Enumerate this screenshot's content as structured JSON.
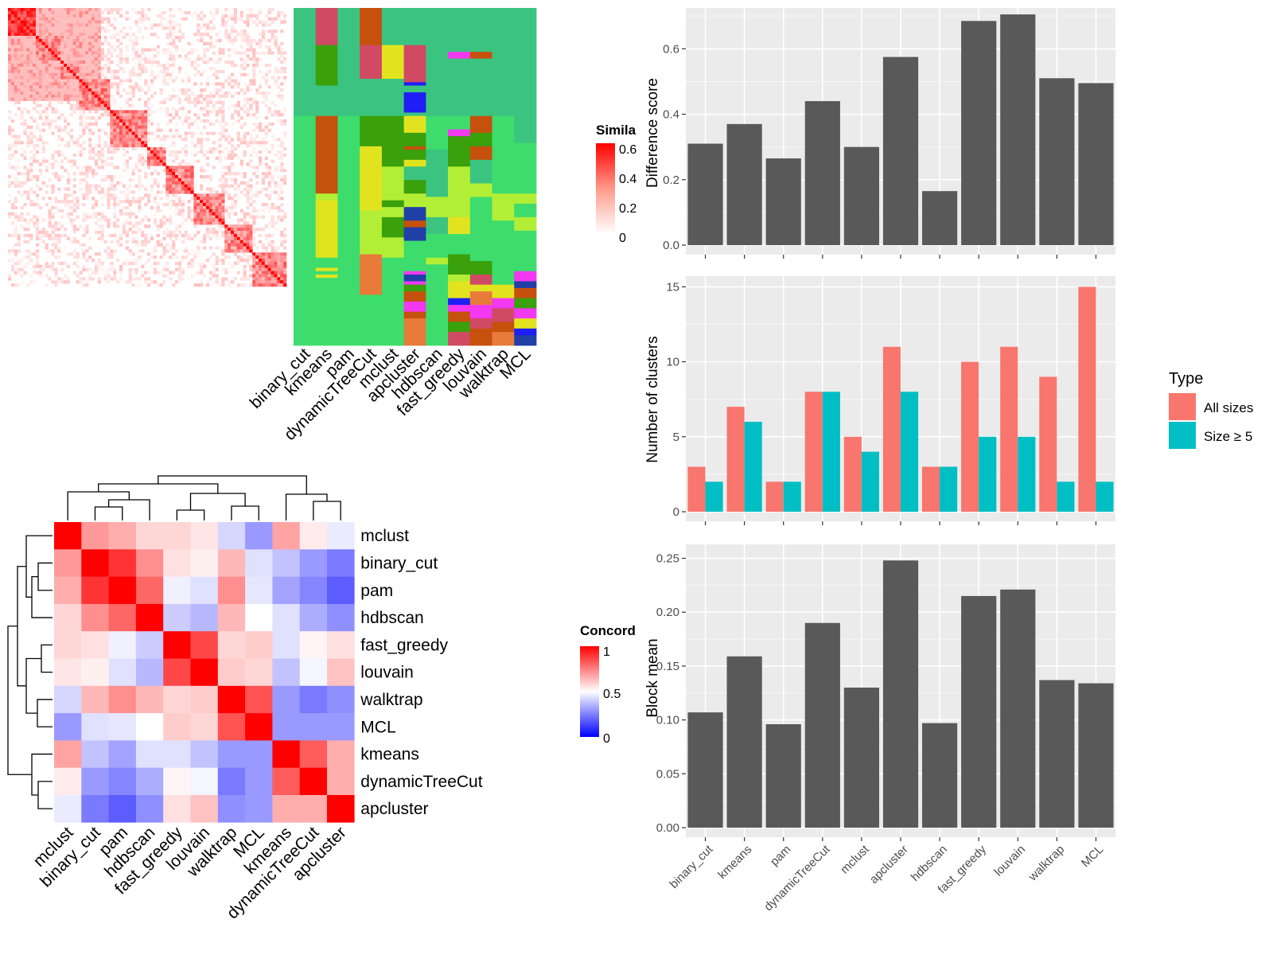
{
  "methods": [
    "binary_cut",
    "kmeans",
    "pam",
    "dynamicTreeCut",
    "mclust",
    "apcluster",
    "hdbscan",
    "fast_greedy",
    "louvain",
    "walktrap",
    "MCL"
  ],
  "colors": {
    "heat_red": "#ff0000",
    "heat_blue": "#0000ff",
    "panel_bg": "#ebebeb",
    "bar_gray": "#595959",
    "all_sizes": "#f8766d",
    "size_ge5": "#00bfc4",
    "class_colors": [
      "#3bc47f",
      "#d04a64",
      "#c5510d",
      "#3aa00c",
      "#e2e31f",
      "#3ddc6d",
      "#b3ee36",
      "#2040a8",
      "#1f1ff5",
      "#f238f0",
      "#e87a3a"
    ]
  },
  "similarity_legend": {
    "title": "Simila",
    "ticks": [
      "0.6",
      "0.4",
      "0.2",
      "0"
    ]
  },
  "concordance_legend": {
    "title": "Concord",
    "ticks": [
      "1",
      "0.5",
      "0"
    ]
  },
  "concordance_heatmap": {
    "row_order": [
      "mclust",
      "binary_cut",
      "pam",
      "hdbscan",
      "fast_greedy",
      "louvain",
      "walktrap",
      "MCL",
      "kmeans",
      "dynamicTreeCut",
      "apcluster"
    ],
    "values": [
      [
        1.0,
        0.7,
        0.66,
        0.58,
        0.58,
        0.55,
        0.42,
        0.3,
        0.68,
        0.54,
        0.46
      ],
      [
        0.7,
        1.0,
        0.9,
        0.72,
        0.56,
        0.53,
        0.64,
        0.44,
        0.38,
        0.3,
        0.24
      ],
      [
        0.66,
        0.9,
        1.0,
        0.8,
        0.47,
        0.44,
        0.72,
        0.45,
        0.32,
        0.26,
        0.18
      ],
      [
        0.58,
        0.72,
        0.8,
        1.0,
        0.4,
        0.36,
        0.64,
        0.5,
        0.44,
        0.34,
        0.28
      ],
      [
        0.58,
        0.56,
        0.47,
        0.4,
        1.0,
        0.86,
        0.58,
        0.6,
        0.44,
        0.52,
        0.56
      ],
      [
        0.55,
        0.53,
        0.44,
        0.36,
        0.86,
        1.0,
        0.6,
        0.58,
        0.38,
        0.48,
        0.62
      ],
      [
        0.42,
        0.64,
        0.72,
        0.64,
        0.58,
        0.6,
        1.0,
        0.84,
        0.3,
        0.24,
        0.28
      ],
      [
        0.3,
        0.44,
        0.45,
        0.5,
        0.6,
        0.58,
        0.84,
        1.0,
        0.3,
        0.3,
        0.3
      ],
      [
        0.68,
        0.38,
        0.32,
        0.44,
        0.44,
        0.38,
        0.3,
        0.3,
        1.0,
        0.82,
        0.66
      ],
      [
        0.54,
        0.3,
        0.26,
        0.34,
        0.52,
        0.48,
        0.24,
        0.3,
        0.82,
        1.0,
        0.66
      ],
      [
        0.46,
        0.24,
        0.18,
        0.28,
        0.56,
        0.62,
        0.28,
        0.3,
        0.66,
        0.66,
        1.0
      ]
    ]
  },
  "chart_data": [
    {
      "type": "heatmap",
      "name": "similarity",
      "blocks": [
        9,
        8,
        6,
        10,
        12,
        6,
        9,
        10,
        9,
        11
      ],
      "value_range": [
        0,
        0.6
      ]
    },
    {
      "type": "heatmap",
      "name": "class-assignments",
      "columns": [
        "binary_cut",
        "kmeans",
        "pam",
        "dynamicTreeCut",
        "mclust",
        "apcluster",
        "hdbscan",
        "fast_greedy",
        "louvain",
        "walktrap",
        "MCL"
      ]
    },
    {
      "type": "bar",
      "categories": [
        "binary_cut",
        "kmeans",
        "pam",
        "dynamicTreeCut",
        "mclust",
        "apcluster",
        "hdbscan",
        "fast_greedy",
        "louvain",
        "walktrap",
        "MCL"
      ],
      "values": [
        0.31,
        0.37,
        0.265,
        0.44,
        0.3,
        0.575,
        0.165,
        0.685,
        0.705,
        0.51,
        0.495
      ],
      "ylabel": "Difference score",
      "ylim": [
        0,
        0.715
      ],
      "yticks": [
        "0.0",
        "0.2",
        "0.4",
        "0.6"
      ]
    },
    {
      "type": "bar",
      "categories": [
        "binary_cut",
        "kmeans",
        "pam",
        "dynamicTreeCut",
        "mclust",
        "apcluster",
        "hdbscan",
        "fast_greedy",
        "louvain",
        "walktrap",
        "MCL"
      ],
      "series": [
        {
          "name": "All sizes",
          "values": [
            3,
            7,
            2,
            8,
            5,
            11,
            3,
            10,
            11,
            9,
            15
          ]
        },
        {
          "name": "Size ≥ 5",
          "values": [
            2,
            6,
            2,
            8,
            4,
            8,
            3,
            5,
            5,
            2,
            2
          ]
        }
      ],
      "ylabel": "Number of clusters",
      "ylim": [
        0,
        15.5
      ],
      "yticks": [
        "0",
        "5",
        "10",
        "15"
      ],
      "legend": {
        "title": "Type",
        "position": "right"
      }
    },
    {
      "type": "bar",
      "categories": [
        "binary_cut",
        "kmeans",
        "pam",
        "dynamicTreeCut",
        "mclust",
        "apcluster",
        "hdbscan",
        "fast_greedy",
        "louvain",
        "walktrap",
        "MCL"
      ],
      "values": [
        0.107,
        0.159,
        0.096,
        0.19,
        0.13,
        0.248,
        0.097,
        0.215,
        0.221,
        0.137,
        0.134
      ],
      "ylabel": "Block mean",
      "ylim": [
        0,
        0.26
      ],
      "yticks": [
        "0.00",
        "0.05",
        "0.10",
        "0.15",
        "0.20",
        "0.25"
      ]
    }
  ]
}
